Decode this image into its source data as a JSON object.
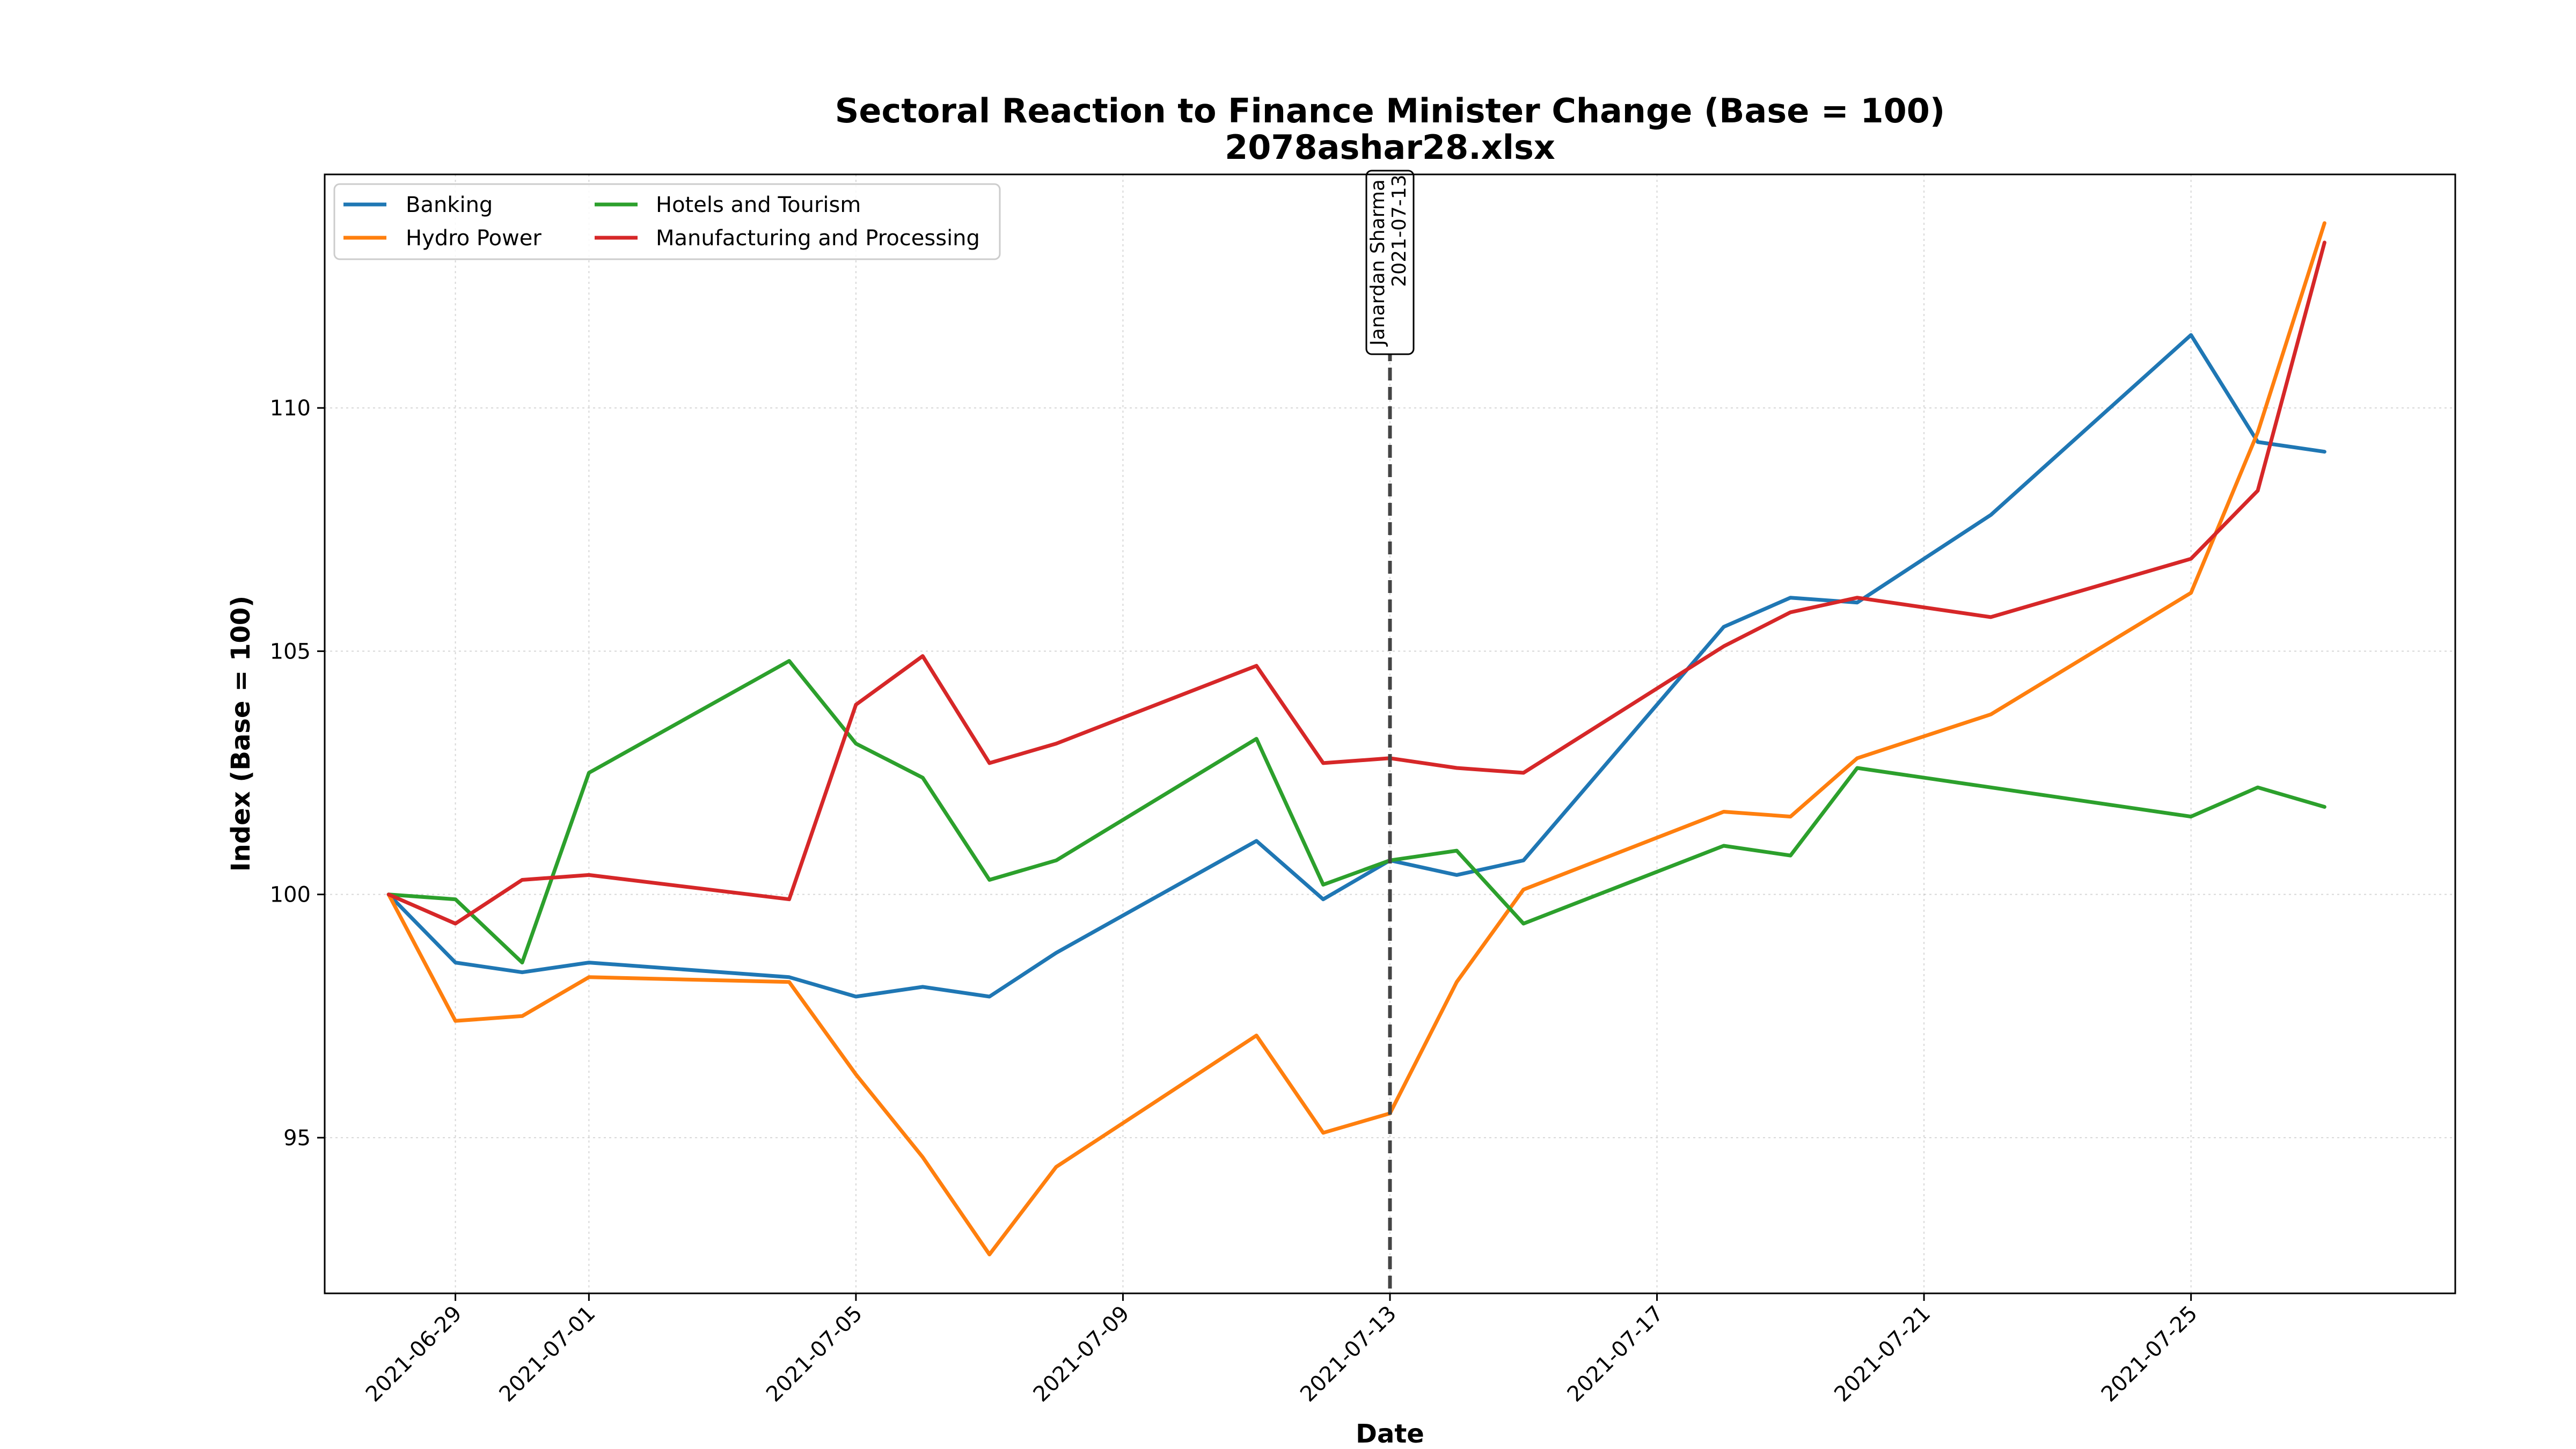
{
  "chart_data": {
    "type": "line",
    "title": "Sectoral Reaction to Finance Minister Change (Base = 100)",
    "subtitle": "2078ashar28.xlsx",
    "xlabel": "Date",
    "ylabel": "Index (Base = 100)",
    "x_range": [
      "2021-06-27T01:00",
      "2021-07-28T23:00"
    ],
    "ylim": [
      91.8,
      114.8
    ],
    "grid": true,
    "legend_position": "top-left",
    "x_ticks": [
      "2021-06-29",
      "2021-07-01",
      "2021-07-05",
      "2021-07-09",
      "2021-07-13",
      "2021-07-17",
      "2021-07-21",
      "2021-07-25"
    ],
    "y_ticks": [
      95,
      100,
      105,
      110
    ],
    "y_tick_labels": [
      "95",
      "100",
      "105",
      "110"
    ],
    "series": [
      {
        "name": "Banking",
        "color": "#1f77b4",
        "x": [
          "2021-06-28",
          "2021-06-29",
          "2021-06-30",
          "2021-07-01",
          "2021-07-04",
          "2021-07-05",
          "2021-07-06",
          "2021-07-07",
          "2021-07-08",
          "2021-07-11",
          "2021-07-12",
          "2021-07-13",
          "2021-07-14",
          "2021-07-15",
          "2021-07-18",
          "2021-07-19",
          "2021-07-20",
          "2021-07-22",
          "2021-07-25",
          "2021-07-26",
          "2021-07-27"
        ],
        "values": [
          100.0,
          98.6,
          98.4,
          98.6,
          98.3,
          97.9,
          98.1,
          97.9,
          98.8,
          101.1,
          99.9,
          100.7,
          100.4,
          100.7,
          105.5,
          106.1,
          106.0,
          107.8,
          111.5,
          109.3,
          109.1
        ]
      },
      {
        "name": "Hydro Power",
        "color": "#ff7f0e",
        "x": [
          "2021-06-28",
          "2021-06-29",
          "2021-06-30",
          "2021-07-01",
          "2021-07-04",
          "2021-07-05",
          "2021-07-06",
          "2021-07-07",
          "2021-07-08",
          "2021-07-11",
          "2021-07-12",
          "2021-07-13",
          "2021-07-14",
          "2021-07-15",
          "2021-07-18",
          "2021-07-19",
          "2021-07-20",
          "2021-07-22",
          "2021-07-25",
          "2021-07-26",
          "2021-07-27"
        ],
        "values": [
          100.0,
          97.4,
          97.5,
          98.3,
          98.2,
          96.3,
          94.6,
          92.6,
          94.4,
          97.1,
          95.1,
          95.5,
          98.2,
          100.1,
          101.7,
          101.6,
          102.8,
          103.7,
          106.2,
          109.5,
          113.8
        ]
      },
      {
        "name": "Hotels and Tourism",
        "color": "#2ca02c",
        "x": [
          "2021-06-28",
          "2021-06-29",
          "2021-06-30",
          "2021-07-01",
          "2021-07-04",
          "2021-07-05",
          "2021-07-06",
          "2021-07-07",
          "2021-07-08",
          "2021-07-11",
          "2021-07-12",
          "2021-07-13",
          "2021-07-14",
          "2021-07-15",
          "2021-07-18",
          "2021-07-19",
          "2021-07-20",
          "2021-07-25",
          "2021-07-26",
          "2021-07-27"
        ],
        "values": [
          100.0,
          99.9,
          98.6,
          102.5,
          104.8,
          103.1,
          102.4,
          100.3,
          100.7,
          103.2,
          100.2,
          100.7,
          100.9,
          99.4,
          101.0,
          100.8,
          102.6,
          101.6,
          102.2,
          101.8
        ]
      },
      {
        "name": "Manufacturing and Processing",
        "color": "#d62728",
        "x": [
          "2021-06-28",
          "2021-06-29",
          "2021-06-30",
          "2021-07-01",
          "2021-07-04",
          "2021-07-05",
          "2021-07-06",
          "2021-07-07",
          "2021-07-08",
          "2021-07-11",
          "2021-07-12",
          "2021-07-13",
          "2021-07-14",
          "2021-07-15",
          "2021-07-18",
          "2021-07-19",
          "2021-07-20",
          "2021-07-22",
          "2021-07-25",
          "2021-07-26",
          "2021-07-27"
        ],
        "values": [
          100.0,
          99.4,
          100.3,
          100.4,
          99.9,
          103.9,
          104.9,
          102.7,
          103.1,
          104.7,
          102.7,
          102.8,
          102.6,
          102.5,
          105.1,
          105.8,
          106.1,
          105.7,
          106.9,
          108.3,
          113.4
        ]
      }
    ],
    "annotations": [
      {
        "x": "2021-07-13",
        "label_line1": "Janardan Sharma",
        "label_line2": "2021-07-13",
        "line_color": "#444444"
      }
    ]
  }
}
